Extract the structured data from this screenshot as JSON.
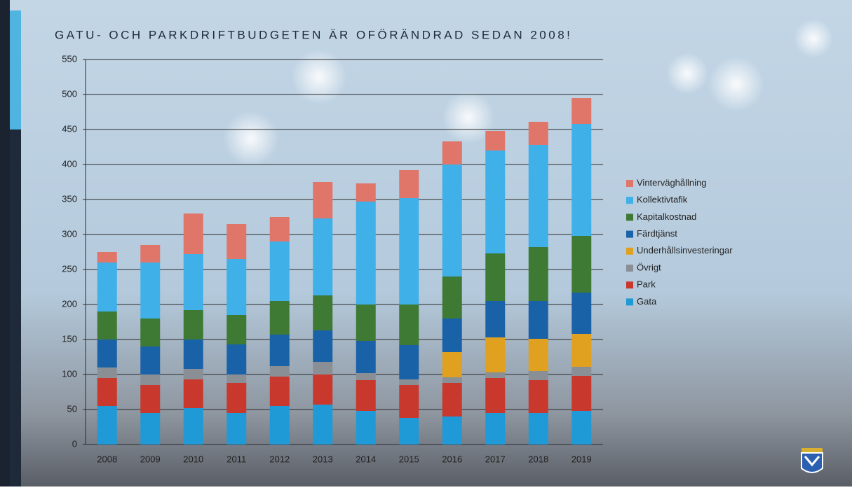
{
  "chart_data": {
    "type": "stacked_bar",
    "title": "GATU- OCH PARKDRIFTBUDGETEN ÄR OFÖRÄNDRAD SEDAN 2008!",
    "categories": [
      "2008",
      "2009",
      "2010",
      "2011",
      "2012",
      "2013",
      "2014",
      "2015",
      "2016",
      "2017",
      "2018",
      "2019"
    ],
    "series": [
      {
        "name": "Gata",
        "color": "#1f9ad6",
        "values": [
          55,
          45,
          52,
          45,
          55,
          57,
          48,
          38,
          40,
          45,
          45,
          48
        ]
      },
      {
        "name": "Park",
        "color": "#c8382c",
        "values": [
          40,
          40,
          41,
          43,
          42,
          43,
          44,
          47,
          48,
          50,
          47,
          50
        ]
      },
      {
        "name": "Övrigt",
        "color": "#8a8f96",
        "values": [
          15,
          15,
          15,
          12,
          15,
          18,
          10,
          8,
          8,
          8,
          13,
          13
        ]
      },
      {
        "name": "Underhållsinvesteringar",
        "color": "#e0a020",
        "values": [
          0,
          0,
          0,
          0,
          0,
          0,
          0,
          0,
          36,
          50,
          46,
          47
        ]
      },
      {
        "name": "Färdtjänst",
        "color": "#1a62a8",
        "values": [
          40,
          40,
          42,
          43,
          45,
          45,
          46,
          49,
          48,
          52,
          54,
          59
        ]
      },
      {
        "name": "Kapitalkostnad",
        "color": "#3f7a35",
        "values": [
          40,
          40,
          42,
          42,
          48,
          50,
          52,
          58,
          60,
          68,
          77,
          81
        ]
      },
      {
        "name": "Kollektivtafik",
        "color": "#3fb0e8",
        "values": [
          70,
          80,
          80,
          80,
          85,
          110,
          147,
          152,
          160,
          147,
          146,
          160
        ]
      },
      {
        "name": "Vinterväghållning",
        "color": "#e0756a",
        "values": [
          15,
          25,
          58,
          50,
          35,
          52,
          26,
          40,
          33,
          28,
          33,
          37
        ]
      }
    ],
    "ylim": [
      0,
      550
    ],
    "yticks": [
      0,
      50,
      100,
      150,
      200,
      250,
      300,
      350,
      400,
      450,
      500,
      550
    ],
    "grid": true,
    "legend": "right"
  }
}
